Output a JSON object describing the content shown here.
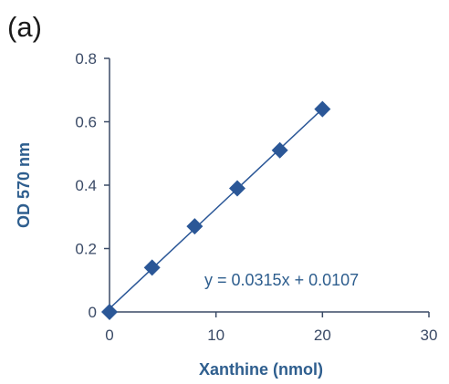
{
  "panel_label": "(a)",
  "chart_data": {
    "type": "scatter",
    "title": "",
    "xlabel": "Xanthine (nmol)",
    "ylabel": "OD 570 nm",
    "xlim": [
      0,
      30
    ],
    "ylim": [
      0,
      0.8
    ],
    "xticks": [
      0,
      10,
      20,
      30
    ],
    "yticks": [
      0,
      0.2,
      0.4,
      0.6,
      0.8
    ],
    "xtick_labels": [
      "0",
      "10",
      "20",
      "30"
    ],
    "ytick_labels": [
      "0",
      "0.2",
      "0.4",
      "0.6",
      "0.8"
    ],
    "grid": false,
    "marker": "diamond",
    "marker_color": "#2b5797",
    "line_color": "#2b5797",
    "series": [
      {
        "x": [
          0,
          4,
          8,
          12,
          16,
          20
        ],
        "y": [
          0.0,
          0.14,
          0.27,
          0.39,
          0.51,
          0.64
        ]
      }
    ],
    "trendline": {
      "slope": 0.0315,
      "intercept": 0.0107,
      "x_range": [
        0,
        20
      ],
      "equation": "y = 0.0315x + 0.0107"
    }
  }
}
